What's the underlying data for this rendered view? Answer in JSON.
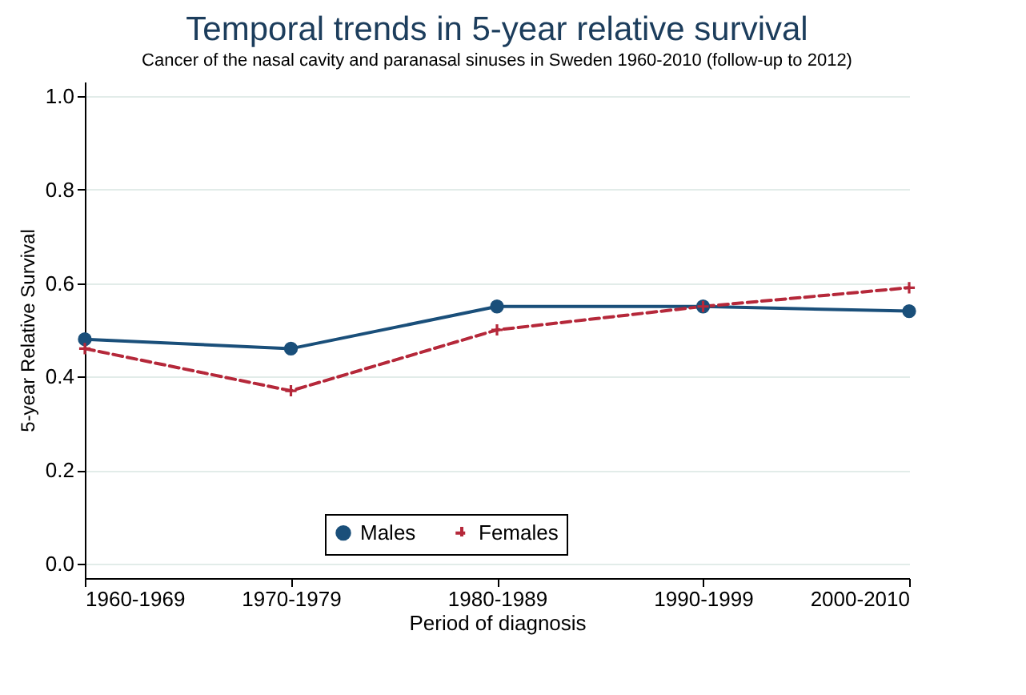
{
  "chart_data": {
    "type": "line",
    "title": "Temporal trends in 5-year relative survival",
    "subtitle": "Cancer of the nasal cavity and paranasal sinuses in Sweden 1960-2010 (follow-up to 2012)",
    "xlabel": "Period of diagnosis",
    "ylabel": "5-year Relative Survival",
    "categories": [
      "1960-1969",
      "1970-1979",
      "1980-1989",
      "1990-1999",
      "2000-2010"
    ],
    "series": [
      {
        "name": "Males",
        "color": "#1a4f7a",
        "marker": "circle",
        "line_style": "solid",
        "values": [
          0.48,
          0.46,
          0.55,
          0.55,
          0.54
        ]
      },
      {
        "name": "Females",
        "color": "#b5283a",
        "marker": "cross",
        "line_style": "dashed",
        "values": [
          0.46,
          0.37,
          0.5,
          0.55,
          0.59
        ]
      }
    ],
    "ylim": [
      -0.03,
      1.03
    ],
    "yticks": [
      {
        "value": 0,
        "label": "0.0"
      },
      0.2,
      0.4,
      0.6,
      0.8,
      {
        "value": 1,
        "label": "1.0"
      }
    ],
    "grid": "y",
    "legend": "bottom"
  }
}
